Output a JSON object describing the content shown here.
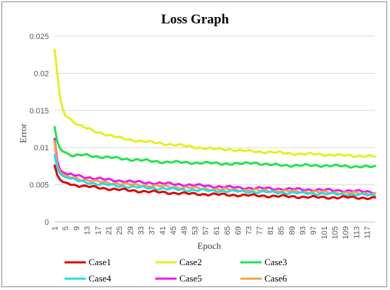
{
  "chart_data": {
    "type": "line",
    "title": "Loss Graph",
    "xlabel": "Epoch",
    "ylabel": "Error",
    "x_ticks": [
      "1",
      "5",
      "9",
      "13",
      "17",
      "21",
      "25",
      "29",
      "33",
      "37",
      "41",
      "45",
      "49",
      "53",
      "57",
      "61",
      "65",
      "69",
      "73",
      "77",
      "81",
      "85",
      "89",
      "93",
      "97",
      "101",
      "105",
      "109",
      "113",
      "117"
    ],
    "y_ticks": [
      "0",
      "0.005",
      "0.01",
      "0.015",
      "0.02",
      "0.025"
    ],
    "x_range": [
      1,
      120
    ],
    "ylim": [
      0,
      0.025
    ],
    "grid": true,
    "legend_position": "bottom",
    "series": [
      {
        "name": "Case1",
        "color": "#e00000",
        "points": [
          [
            1,
            0.0076
          ],
          [
            2,
            0.0063
          ],
          [
            3,
            0.0057
          ],
          [
            4,
            0.0054
          ],
          [
            6,
            0.0052
          ],
          [
            8,
            0.005
          ],
          [
            12,
            0.0048
          ],
          [
            20,
            0.0045
          ],
          [
            30,
            0.0042
          ],
          [
            40,
            0.004
          ],
          [
            50,
            0.0038
          ],
          [
            60,
            0.0037
          ],
          [
            70,
            0.0036
          ],
          [
            80,
            0.0035
          ],
          [
            90,
            0.0034
          ],
          [
            100,
            0.0033
          ],
          [
            110,
            0.0033
          ],
          [
            120,
            0.0032
          ]
        ]
      },
      {
        "name": "Case2",
        "color": "#e6f01a",
        "points": [
          [
            1,
            0.0232
          ],
          [
            2,
            0.02
          ],
          [
            3,
            0.0168
          ],
          [
            4,
            0.0152
          ],
          [
            5,
            0.0143
          ],
          [
            7,
            0.0138
          ],
          [
            10,
            0.013
          ],
          [
            15,
            0.0123
          ],
          [
            20,
            0.0118
          ],
          [
            25,
            0.0113
          ],
          [
            30,
            0.011
          ],
          [
            35,
            0.0108
          ],
          [
            40,
            0.0106
          ],
          [
            45,
            0.0104
          ],
          [
            50,
            0.0102
          ],
          [
            55,
            0.01
          ],
          [
            60,
            0.0098
          ],
          [
            65,
            0.0098
          ],
          [
            70,
            0.0096
          ],
          [
            75,
            0.0095
          ],
          [
            80,
            0.0094
          ],
          [
            85,
            0.0093
          ],
          [
            90,
            0.0092
          ],
          [
            95,
            0.0091
          ],
          [
            100,
            0.0091
          ],
          [
            105,
            0.009
          ],
          [
            110,
            0.0089
          ],
          [
            115,
            0.0089
          ],
          [
            120,
            0.0088
          ]
        ]
      },
      {
        "name": "Case3",
        "color": "#1ee44a",
        "points": [
          [
            1,
            0.0128
          ],
          [
            2,
            0.0108
          ],
          [
            3,
            0.0099
          ],
          [
            4,
            0.0095
          ],
          [
            6,
            0.0092
          ],
          [
            8,
            0.0089
          ],
          [
            12,
            0.009
          ],
          [
            20,
            0.0087
          ],
          [
            30,
            0.0084
          ],
          [
            40,
            0.0081
          ],
          [
            50,
            0.008
          ],
          [
            60,
            0.0079
          ],
          [
            70,
            0.0078
          ],
          [
            75,
            0.008
          ],
          [
            80,
            0.0077
          ],
          [
            90,
            0.0076
          ],
          [
            100,
            0.0076
          ],
          [
            110,
            0.0075
          ],
          [
            120,
            0.0074
          ]
        ]
      },
      {
        "name": "Case4",
        "color": "#22dcea",
        "points": [
          [
            1,
            0.009
          ],
          [
            2,
            0.0072
          ],
          [
            3,
            0.0065
          ],
          [
            4,
            0.0062
          ],
          [
            6,
            0.0059
          ],
          [
            10,
            0.0055
          ],
          [
            15,
            0.0052
          ],
          [
            20,
            0.005
          ],
          [
            30,
            0.0047
          ],
          [
            40,
            0.0045
          ],
          [
            50,
            0.0043
          ],
          [
            60,
            0.0042
          ],
          [
            70,
            0.0041
          ],
          [
            80,
            0.004
          ],
          [
            90,
            0.0039
          ],
          [
            100,
            0.0038
          ],
          [
            110,
            0.0037
          ],
          [
            120,
            0.0036
          ]
        ]
      },
      {
        "name": "Case5",
        "color": "#ee1ae4",
        "points": [
          [
            1,
            0.0112
          ],
          [
            2,
            0.0082
          ],
          [
            3,
            0.007
          ],
          [
            4,
            0.0067
          ],
          [
            6,
            0.0064
          ],
          [
            10,
            0.0062
          ],
          [
            15,
            0.0059
          ],
          [
            20,
            0.0057
          ],
          [
            30,
            0.0054
          ],
          [
            40,
            0.0052
          ],
          [
            50,
            0.005
          ],
          [
            60,
            0.0048
          ],
          [
            70,
            0.0046
          ],
          [
            80,
            0.0045
          ],
          [
            90,
            0.0044
          ],
          [
            100,
            0.0043
          ],
          [
            110,
            0.0042
          ],
          [
            120,
            0.004
          ]
        ]
      },
      {
        "name": "Case6",
        "color": "#f5a143",
        "points": [
          [
            1,
            0.0108
          ],
          [
            2,
            0.0075
          ],
          [
            3,
            0.0067
          ],
          [
            4,
            0.0064
          ],
          [
            6,
            0.0061
          ],
          [
            10,
            0.0058
          ],
          [
            15,
            0.0055
          ],
          [
            20,
            0.0053
          ],
          [
            30,
            0.005
          ],
          [
            40,
            0.0048
          ],
          [
            50,
            0.0046
          ],
          [
            60,
            0.0044
          ],
          [
            70,
            0.0043
          ],
          [
            80,
            0.0042
          ],
          [
            90,
            0.0041
          ],
          [
            100,
            0.004
          ],
          [
            110,
            0.0039
          ],
          [
            120,
            0.0038
          ]
        ]
      }
    ]
  }
}
